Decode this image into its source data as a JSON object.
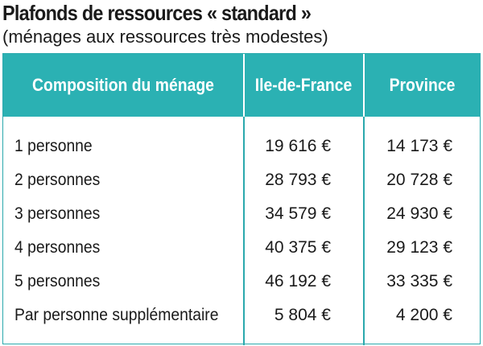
{
  "title": "Plafonds de ressources « standard »",
  "subtitle": "(ménages aux ressources très modestes)",
  "colors": {
    "header_bg": "#2bb1b3",
    "border": "#2ba9ad",
    "header_text": "#ffffff",
    "body_text": "#1a1a1a"
  },
  "table": {
    "headers": {
      "composition": "Composition du ménage",
      "idf": "Ile-de-France",
      "province": "Province"
    },
    "rows": [
      {
        "label": "1 personne",
        "idf": "19 616 €",
        "province": "14 173 €"
      },
      {
        "label": "2 personnes",
        "idf": "28 793 €",
        "province": "20 728 €"
      },
      {
        "label": "3 personnes",
        "idf": "34 579 €",
        "province": "24 930 €"
      },
      {
        "label": "4 personnes",
        "idf": "40 375 €",
        "province": "29 123 €"
      },
      {
        "label": "5 personnes",
        "idf": "46 192 €",
        "province": "33 335 €"
      },
      {
        "label": "Par personne supplémentaire",
        "idf": "5 804 €",
        "province": "4 200 €"
      }
    ]
  }
}
